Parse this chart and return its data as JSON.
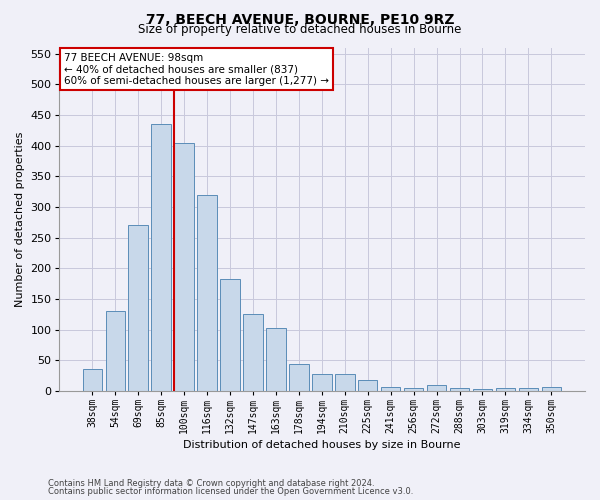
{
  "title1": "77, BEECH AVENUE, BOURNE, PE10 9RZ",
  "title2": "Size of property relative to detached houses in Bourne",
  "xlabel": "Distribution of detached houses by size in Bourne",
  "ylabel": "Number of detached properties",
  "categories": [
    "38sqm",
    "54sqm",
    "69sqm",
    "85sqm",
    "100sqm",
    "116sqm",
    "132sqm",
    "147sqm",
    "163sqm",
    "178sqm",
    "194sqm",
    "210sqm",
    "225sqm",
    "241sqm",
    "256sqm",
    "272sqm",
    "288sqm",
    "303sqm",
    "319sqm",
    "334sqm",
    "350sqm"
  ],
  "values": [
    35,
    130,
    270,
    435,
    405,
    320,
    183,
    125,
    103,
    44,
    28,
    27,
    17,
    7,
    5,
    9,
    4,
    3,
    4,
    4,
    7
  ],
  "bar_color": "#c8d8ea",
  "bar_edge_color": "#5b8db8",
  "grid_color": "#c8c8dc",
  "vline_color": "#cc0000",
  "vline_x_index": 3.55,
  "annotation_line1": "77 BEECH AVENUE: 98sqm",
  "annotation_line2": "← 40% of detached houses are smaller (837)",
  "annotation_line3": "60% of semi-detached houses are larger (1,277) →",
  "annotation_box_color": "#ffffff",
  "annotation_box_edge": "#cc0000",
  "footnote1": "Contains HM Land Registry data © Crown copyright and database right 2024.",
  "footnote2": "Contains public sector information licensed under the Open Government Licence v3.0.",
  "ylim": [
    0,
    560
  ],
  "yticks": [
    0,
    50,
    100,
    150,
    200,
    250,
    300,
    350,
    400,
    450,
    500,
    550
  ],
  "bg_color": "#f0f0f8",
  "title1_fontsize": 10,
  "title2_fontsize": 8.5,
  "xlabel_fontsize": 8,
  "ylabel_fontsize": 8,
  "tick_fontsize": 7,
  "annotation_fontsize": 7.5,
  "footnote_fontsize": 6
}
